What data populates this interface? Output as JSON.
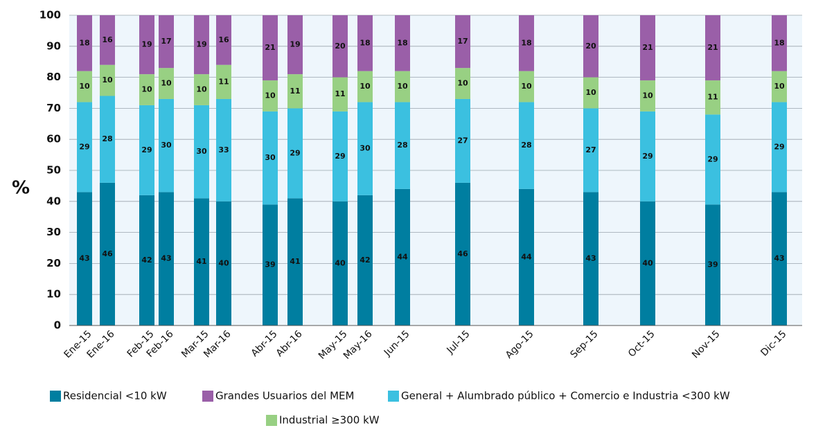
{
  "chart_data": {
    "type": "stacked_bar",
    "y_label": "%",
    "categories": [
      "Ene-15",
      "Ene-16",
      "Feb-15",
      "Feb-16",
      "Mar-15",
      "Mar-16",
      "Abr-15",
      "Abr-16",
      "May-15",
      "May-16",
      "Jun-15",
      "Jul-15",
      "Ago-15",
      "Sep-15",
      "Oct-15",
      "Nov-15",
      "Dic-15"
    ],
    "series": [
      {
        "name": "Residencial <10 kW",
        "color": "#007ea0",
        "values": [
          43,
          46,
          42,
          43,
          41,
          40,
          39,
          41,
          40,
          42,
          44,
          46,
          44,
          43,
          40,
          39,
          43
        ]
      },
      {
        "name": "General + Alumbrado público + Comercio e Industria <300 kW",
        "color": "#3bc0e0",
        "values": [
          29,
          28,
          29,
          30,
          30,
          33,
          30,
          29,
          29,
          30,
          28,
          27,
          28,
          27,
          29,
          29,
          29
        ]
      },
      {
        "name": "Industrial ≥300 kW",
        "color": "#98d083",
        "values": [
          10,
          10,
          10,
          10,
          10,
          11,
          10,
          11,
          11,
          10,
          10,
          10,
          10,
          10,
          10,
          11,
          10
        ]
      },
      {
        "name": "Grandes Usuarios del MEM",
        "color": "#9a5fa8",
        "values": [
          18,
          16,
          19,
          17,
          19,
          16,
          21,
          19,
          20,
          18,
          18,
          17,
          18,
          20,
          21,
          21,
          18
        ]
      }
    ],
    "ylim": [
      0,
      100
    ],
    "yticks": [
      0,
      10,
      20,
      30,
      40,
      50,
      60,
      70,
      80,
      90,
      100
    ],
    "grid": true
  }
}
